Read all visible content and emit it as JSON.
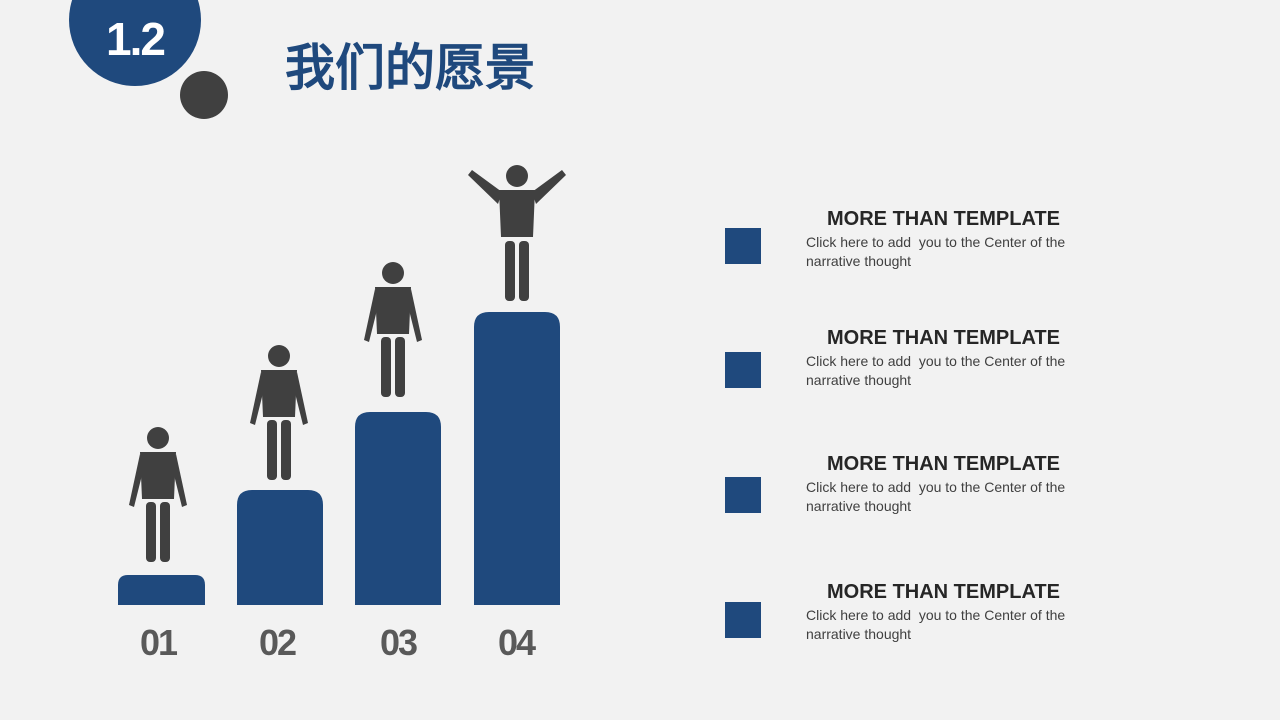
{
  "header": {
    "number": "1.2",
    "title": "我们的愿景"
  },
  "steps": [
    "01",
    "02",
    "03",
    "04"
  ],
  "items": [
    {
      "title": "MORE  THAN  TEMPLATE",
      "text": "Click here to add  you to the Center of the narrative thought"
    },
    {
      "title": "MORE  THAN  TEMPLATE",
      "text": "Click here to add  you to the Center of the narrative thought"
    },
    {
      "title": "MORE  THAN  TEMPLATE",
      "text": "Click here to add  you to the Center of the narrative thought"
    },
    {
      "title": "MORE  THAN  TEMPLATE",
      "text": "Click here to add  you to the Center of the narrative thought"
    }
  ]
}
